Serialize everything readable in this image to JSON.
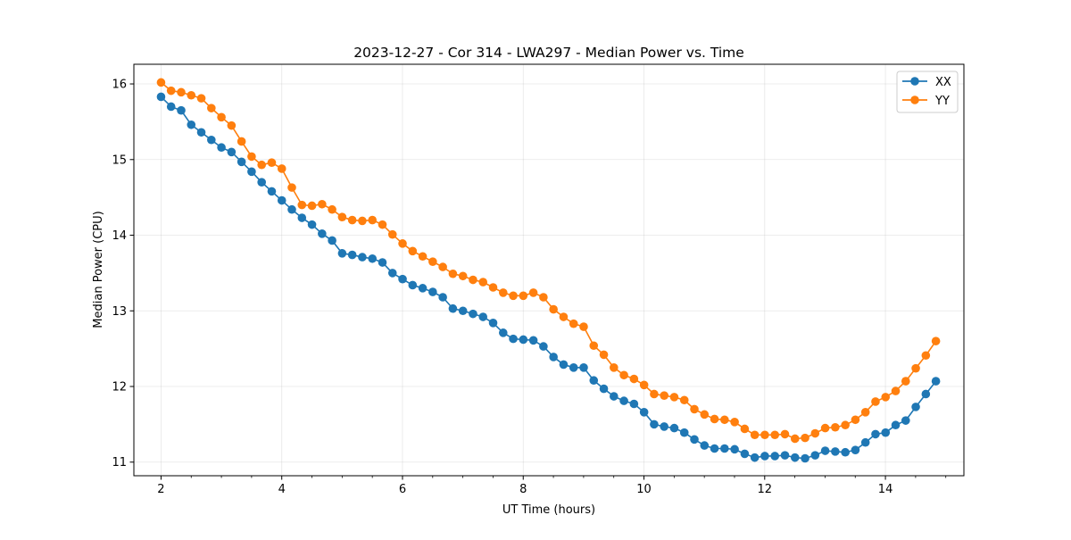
{
  "chart_data": {
    "type": "line",
    "title": "2023-12-27 - Cor 314 - LWA297 - Median Power vs. Time",
    "xlabel": "UT Time (hours)",
    "ylabel": "Median Power (CPU)",
    "xlim": [
      1.55,
      15.3
    ],
    "ylim": [
      10.82,
      16.26
    ],
    "xticks": [
      2,
      4,
      6,
      8,
      10,
      12,
      14
    ],
    "xtick_labels": [
      "2",
      "4",
      "6",
      "8",
      "10",
      "12",
      "14"
    ],
    "yticks": [
      11,
      12,
      13,
      14,
      15,
      16
    ],
    "ytick_labels": [
      "11",
      "12",
      "13",
      "14",
      "15",
      "16"
    ],
    "x_minor_step": 0.5,
    "grid": true,
    "legend_position": "top-right",
    "series": [
      {
        "name": "XX",
        "color": "#1f77b4",
        "x_start": 2.0,
        "x_step": 0.1667,
        "values": [
          15.83,
          15.7,
          15.65,
          15.46,
          15.36,
          15.26,
          15.16,
          15.1,
          14.97,
          14.84,
          14.7,
          14.58,
          14.46,
          14.34,
          14.23,
          14.14,
          14.02,
          13.93,
          13.76,
          13.74,
          13.71,
          13.69,
          13.64,
          13.5,
          13.42,
          13.34,
          13.3,
          13.25,
          13.18,
          13.03,
          13.0,
          12.96,
          12.92,
          12.84,
          12.71,
          12.63,
          12.62,
          12.61,
          12.53,
          12.39,
          12.29,
          12.25,
          12.25,
          12.08,
          11.97,
          11.87,
          11.81,
          11.77,
          11.66,
          11.5,
          11.47,
          11.45,
          11.39,
          11.3,
          11.22,
          11.18,
          11.18,
          11.17,
          11.11,
          11.06,
          11.08,
          11.08,
          11.09,
          11.06,
          11.05,
          11.09,
          11.15,
          11.14,
          11.13,
          11.16,
          11.26,
          11.37,
          11.39,
          11.49,
          11.55,
          11.73,
          11.9,
          12.07
        ]
      },
      {
        "name": "YY",
        "color": "#ff7f0e",
        "x_start": 2.0,
        "x_step": 0.1667,
        "values": [
          16.02,
          15.91,
          15.89,
          15.85,
          15.81,
          15.68,
          15.56,
          15.45,
          15.24,
          15.04,
          14.93,
          14.96,
          14.88,
          14.63,
          14.4,
          14.39,
          14.41,
          14.34,
          14.24,
          14.2,
          14.19,
          14.2,
          14.14,
          14.01,
          13.89,
          13.79,
          13.72,
          13.65,
          13.58,
          13.49,
          13.46,
          13.41,
          13.38,
          13.31,
          13.24,
          13.2,
          13.2,
          13.24,
          13.18,
          13.02,
          12.92,
          12.83,
          12.79,
          12.54,
          12.42,
          12.25,
          12.15,
          12.1,
          12.02,
          11.9,
          11.88,
          11.86,
          11.82,
          11.7,
          11.63,
          11.57,
          11.56,
          11.53,
          11.44,
          11.36,
          11.36,
          11.36,
          11.37,
          11.31,
          11.32,
          11.38,
          11.45,
          11.46,
          11.49,
          11.56,
          11.66,
          11.8,
          11.86,
          11.94,
          12.07,
          12.24,
          12.41,
          12.6
        ]
      }
    ]
  }
}
